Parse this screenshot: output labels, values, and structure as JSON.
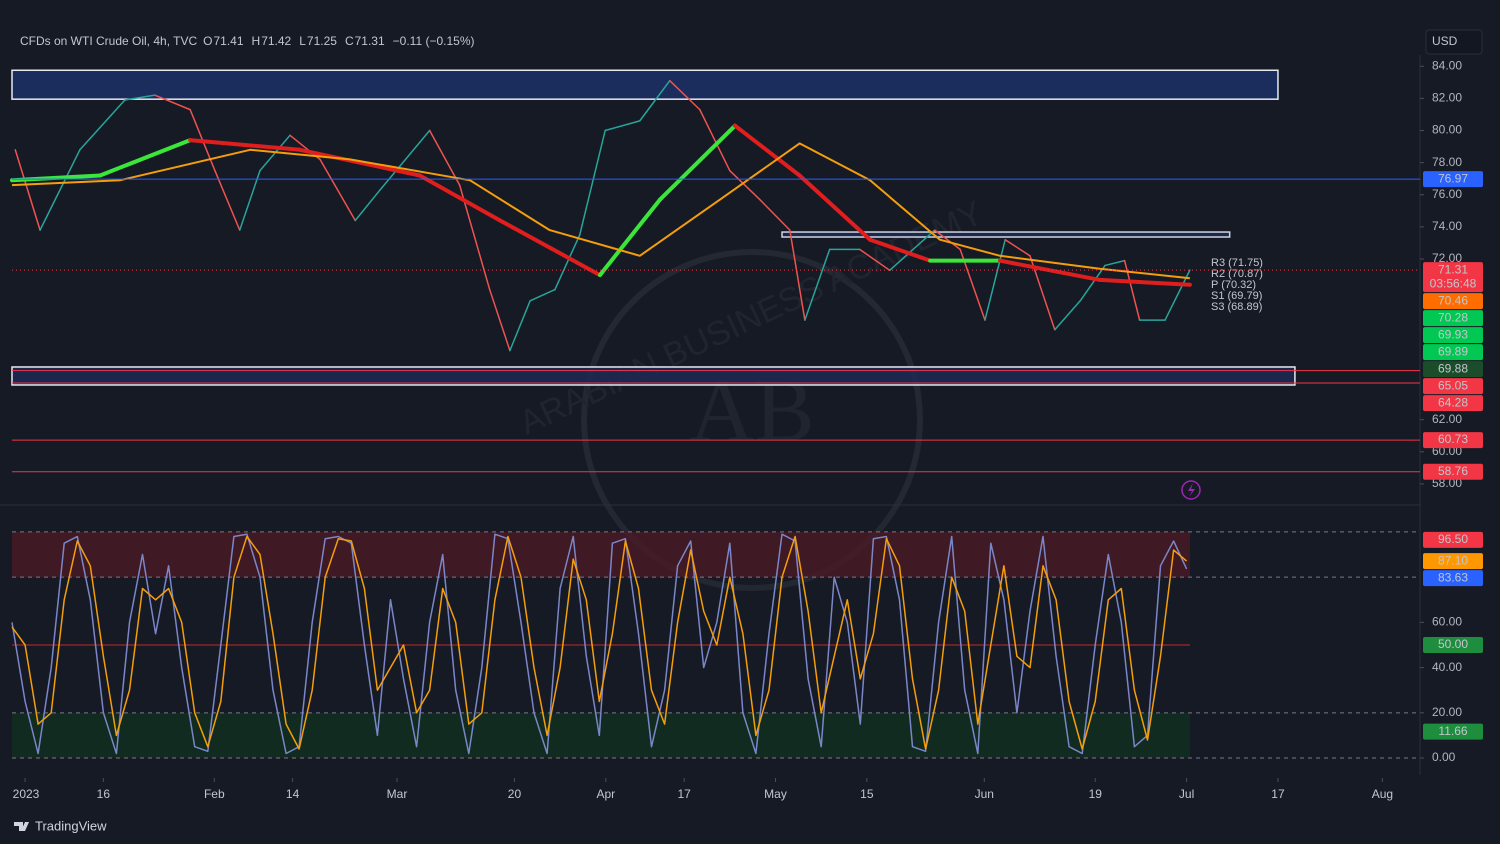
{
  "header": {
    "symbol": "CFDs on WTI Crude Oil, 4h, TVC",
    "ohlc": [
      {
        "key": "O",
        "value": 71.41
      },
      {
        "key": "H",
        "value": 71.42
      },
      {
        "key": "L",
        "value": 71.25
      },
      {
        "key": "C",
        "value": 71.31
      }
    ],
    "change": "−0.11 (−0.15%)",
    "currency": "USD"
  },
  "watermark": {
    "text": "ARABIAN BUSINESS ACADEMY",
    "logo": "AB"
  },
  "footer": {
    "brand": "TradingView"
  },
  "chart_data": [
    {
      "type": "line",
      "xlim": [
        0,
        215
      ],
      "ylim": [
        57,
        84.7
      ],
      "yticks": [
        {
          "value": 58,
          "label": "58.00"
        },
        {
          "value": 60,
          "label": "60.00"
        },
        {
          "value": 62,
          "label": "62.00"
        },
        {
          "value": 72,
          "label": "72.00"
        },
        {
          "value": 74,
          "label": "74.00"
        },
        {
          "value": 76,
          "label": "76.00"
        },
        {
          "value": 78,
          "label": "78.00"
        },
        {
          "value": 80,
          "label": "80.00"
        },
        {
          "value": 82,
          "label": "82.00"
        },
        {
          "value": 84,
          "label": "84.00"
        }
      ],
      "grid": false,
      "series": [
        {
          "color": "#ef5350",
          "up_color": "#26a69a",
          "width": 1.5,
          "x": [
            0.5,
            4.3,
            10.4,
            17.3,
            21.9,
            27.3,
            31.1,
            34.9,
            38,
            42.6,
            47.2,
            52.6,
            56.4,
            64,
            68.6,
            73.2,
            76.3,
            79.4,
            83.2,
            87,
            90.9,
            96.2,
            100.8,
            105.4,
            110,
            114.6,
            119.2,
            121.5,
            125.3,
            129.9,
            134.5,
            141.4,
            145.3,
            149.1,
            152.2,
            156,
            159.8,
            163.7,
            167.5,
            170.5,
            172.8,
            176.7,
            180.5
          ],
          "values": [
            78.8,
            73.8,
            78.8,
            81.9,
            82.2,
            81.3,
            77.5,
            73.8,
            77.5,
            79.7,
            78.2,
            74.4,
            76.3,
            80,
            76.6,
            70.1,
            66.3,
            69.4,
            70.1,
            73.5,
            80,
            80.6,
            83.1,
            81.3,
            77.5,
            75.7,
            73.8,
            68.2,
            72.6,
            72.6,
            71.3,
            73.8,
            72.6,
            68.2,
            73.2,
            72.2,
            67.6,
            69.4,
            71.6,
            71.9,
            68.2,
            68.2,
            71.31
          ]
        },
        {
          "color": "#e01e1e",
          "up_color": "#39e639",
          "width": 4,
          "x": [
            0,
            13.5,
            27.3,
            44.1,
            62.5,
            74.8,
            90.1,
            99.3,
            110.8,
            120.7,
            131.5,
            140.7,
            151.4,
            166.7,
            180.5
          ],
          "values": [
            76.9,
            77.2,
            79.4,
            78.8,
            77.2,
            74.4,
            71.0,
            75.7,
            80.3,
            77.2,
            73.2,
            71.9,
            71.9,
            70.7,
            70.4
          ]
        },
        {
          "color": "#f59e0b",
          "width": 2,
          "x": [
            0,
            16.5,
            36.5,
            51.8,
            70.2,
            82.4,
            96.2,
            108.5,
            120.7,
            131.5,
            142.2,
            151.4,
            166.7,
            180.5
          ],
          "values": [
            76.6,
            76.9,
            78.8,
            78.2,
            76.9,
            73.8,
            72.2,
            75.7,
            79.2,
            76.9,
            73.2,
            72.2,
            71.4,
            70.8
          ]
        }
      ],
      "zones": [
        {
          "x": [
            0,
            194
          ],
          "y": [
            81.95,
            83.75
          ],
          "color": "#1c3166",
          "border": "#e6e9f0"
        },
        {
          "x": [
            0,
            196.6
          ],
          "y": [
            64.16,
            65.28
          ],
          "color": "#1c2a55",
          "border": "#e6e9f0"
        },
        {
          "x": [
            118,
            186.6
          ],
          "y": [
            73.37,
            73.68
          ],
          "color": "#1c2a55",
          "border": "#d0d4de"
        }
      ],
      "levels": [
        {
          "value": 76.97,
          "label": "76.97",
          "color": "#2962ff",
          "line": "solid"
        },
        {
          "value": 71.31,
          "label": "71.31",
          "color": "#f23645",
          "line": "dotted",
          "countdown": "03:56:48"
        },
        {
          "value": 70.46,
          "label": "70.46",
          "color": "#ff6d00",
          "line": "none"
        },
        {
          "value": 70.28,
          "label": "70.28",
          "color": "#00c853",
          "line": "none"
        },
        {
          "value": 69.93,
          "label": "69.93",
          "color": "#00c853",
          "line": "none"
        },
        {
          "value": 69.89,
          "label": "69.89",
          "color": "#00c853",
          "line": "none"
        },
        {
          "value": 69.88,
          "label": "69.88",
          "color": "#1b4d2b",
          "line": "none"
        },
        {
          "value": 65.05,
          "label": "65.05",
          "color": "#f23645",
          "line": "solid"
        },
        {
          "value": 64.28,
          "label": "64.28",
          "color": "#f23645",
          "line": "solid"
        },
        {
          "value": 60.73,
          "label": "60.73",
          "color": "#f23645",
          "line": "solid"
        },
        {
          "value": 58.76,
          "label": "58.76",
          "color": "#f23645",
          "line": "solid"
        }
      ],
      "pivots": [
        "R3 (71.75)",
        "R2 (70.87)",
        "P (70.32)",
        "S1 (69.79)",
        "S3 (68.89)"
      ]
    },
    {
      "type": "line",
      "xlim": [
        0,
        215
      ],
      "ylim": [
        -7.5,
        109.7
      ],
      "yticks": [
        {
          "value": 0,
          "label": "0.00"
        },
        {
          "value": 20,
          "label": "20.00"
        },
        {
          "value": 40,
          "label": "40.00"
        },
        {
          "value": 60,
          "label": "60.00"
        }
      ],
      "xticks": [
        {
          "value": 2,
          "label": "2023"
        },
        {
          "value": 14,
          "label": "16"
        },
        {
          "value": 31,
          "label": "Feb"
        },
        {
          "value": 43,
          "label": "14"
        },
        {
          "value": 59,
          "label": "Mar"
        },
        {
          "value": 77,
          "label": "20"
        },
        {
          "value": 91,
          "label": "Apr"
        },
        {
          "value": 103,
          "label": "17"
        },
        {
          "value": 117,
          "label": "May"
        },
        {
          "value": 131,
          "label": "15"
        },
        {
          "value": 149,
          "label": "Jun"
        },
        {
          "value": 166,
          "label": "19"
        },
        {
          "value": 180,
          "label": "Jul"
        },
        {
          "value": 194,
          "label": "17"
        },
        {
          "value": 210,
          "label": "Aug"
        }
      ],
      "bands": [
        {
          "from": 80,
          "to": 100,
          "color": "#4a1a24"
        },
        {
          "from": 0,
          "to": 20,
          "color": "#12301f"
        }
      ],
      "dashed_levels": [
        0,
        20,
        80,
        100
      ],
      "midline": {
        "value": 50,
        "color": "#c62828"
      },
      "x": [
        0,
        2,
        4,
        6,
        8,
        10,
        12,
        14,
        16,
        18,
        20,
        22,
        24,
        26,
        28,
        30,
        32,
        34,
        36,
        38,
        40,
        42,
        44,
        46,
        48,
        50,
        52,
        54,
        56,
        58,
        60,
        62,
        64,
        66,
        68,
        70,
        72,
        74,
        76,
        78,
        80,
        82,
        84,
        86,
        88,
        90,
        92,
        94,
        96,
        98,
        100,
        102,
        104,
        106,
        108,
        110,
        112,
        114,
        116,
        118,
        120,
        122,
        124,
        126,
        128,
        130,
        132,
        134,
        136,
        138,
        140,
        142,
        144,
        146,
        148,
        150,
        152,
        154,
        156,
        158,
        160,
        162,
        164,
        166,
        168,
        170,
        172,
        174,
        176,
        178,
        180
      ],
      "series": [
        {
          "color": "#7b86c9",
          "values": [
            60,
            25,
            2,
            40,
            95,
            98,
            70,
            20,
            2,
            60,
            90,
            55,
            85,
            40,
            5,
            3,
            50,
            98,
            99,
            80,
            30,
            2,
            5,
            60,
            97,
            98,
            95,
            50,
            10,
            70,
            35,
            5,
            60,
            90,
            30,
            2,
            40,
            99,
            97,
            60,
            20,
            2,
            75,
            98,
            45,
            10,
            95,
            97,
            55,
            5,
            30,
            85,
            96,
            40,
            60,
            95,
            20,
            2,
            55,
            99,
            96,
            35,
            5,
            80,
            60,
            15,
            97,
            98,
            70,
            5,
            3,
            60,
            98,
            30,
            2,
            95,
            70,
            20,
            65,
            98,
            45,
            5,
            2,
            50,
            90,
            60,
            5,
            10,
            85,
            96,
            83.63
          ]
        },
        {
          "color": "#f59e0b",
          "values": [
            58,
            50,
            15,
            20,
            70,
            96,
            85,
            45,
            10,
            30,
            75,
            70,
            75,
            60,
            20,
            5,
            25,
            80,
            98,
            90,
            55,
            15,
            4,
            30,
            80,
            97,
            96,
            75,
            30,
            40,
            50,
            20,
            30,
            75,
            60,
            15,
            20,
            70,
            98,
            80,
            40,
            10,
            40,
            88,
            70,
            25,
            55,
            96,
            75,
            30,
            15,
            60,
            92,
            65,
            50,
            80,
            55,
            10,
            30,
            80,
            98,
            65,
            20,
            45,
            70,
            35,
            55,
            97,
            85,
            35,
            4,
            30,
            80,
            65,
            15,
            50,
            85,
            45,
            40,
            85,
            70,
            25,
            4,
            25,
            70,
            75,
            30,
            8,
            45,
            92,
            87.1
          ]
        }
      ],
      "levels": [
        {
          "value": 96.5,
          "label": "96.50",
          "color": "#f23645"
        },
        {
          "value": 87.1,
          "label": "87.10",
          "color": "#ff9800"
        },
        {
          "value": 83.63,
          "label": "83.63",
          "color": "#2962ff"
        },
        {
          "value": 50,
          "label": "50.00",
          "color": "#1e8e3e"
        },
        {
          "value": 11.66,
          "label": "11.66",
          "color": "#1e8e3e"
        }
      ]
    }
  ]
}
